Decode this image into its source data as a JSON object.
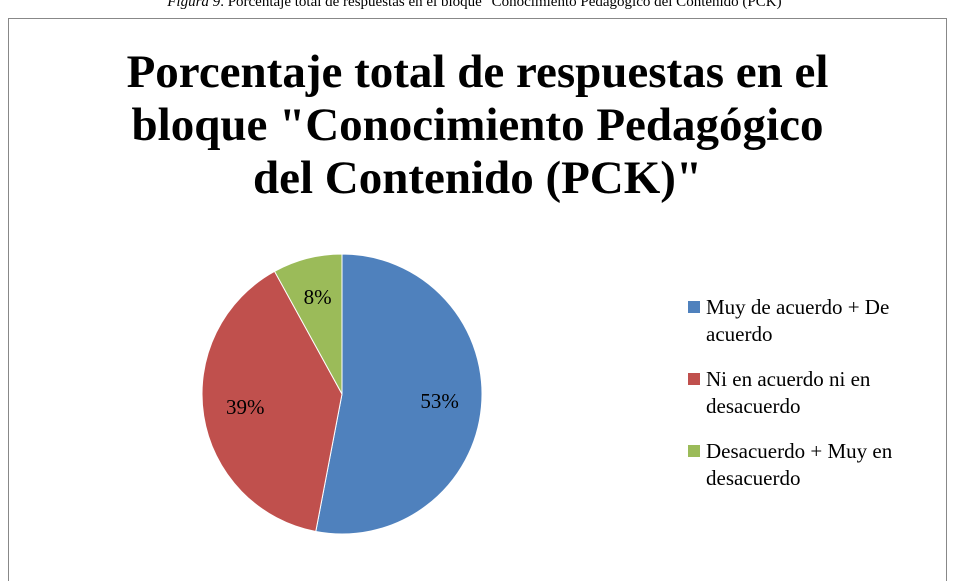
{
  "caption": {
    "label": "Figura 9",
    "text": ". Porcentaje total de respuestas en el bloque \"Conocimiento Pedagógico del Contenido (PCK)\""
  },
  "chart_data": {
    "type": "pie",
    "title": "Porcentaje total de respuestas en el bloque \"Conocimiento Pedagógico del Contenido (PCK)\"",
    "categories": [
      "Muy de acuerdo + De acuerdo",
      "Ni en acuerdo ni en desacuerdo",
      "Desacuerdo + Muy en desacuerdo"
    ],
    "values": [
      53,
      39,
      8
    ],
    "value_labels": [
      "53%",
      "39%",
      "8%"
    ],
    "colors": [
      "#4f81bd",
      "#c0504d",
      "#9bbb59"
    ],
    "legend": "right"
  }
}
